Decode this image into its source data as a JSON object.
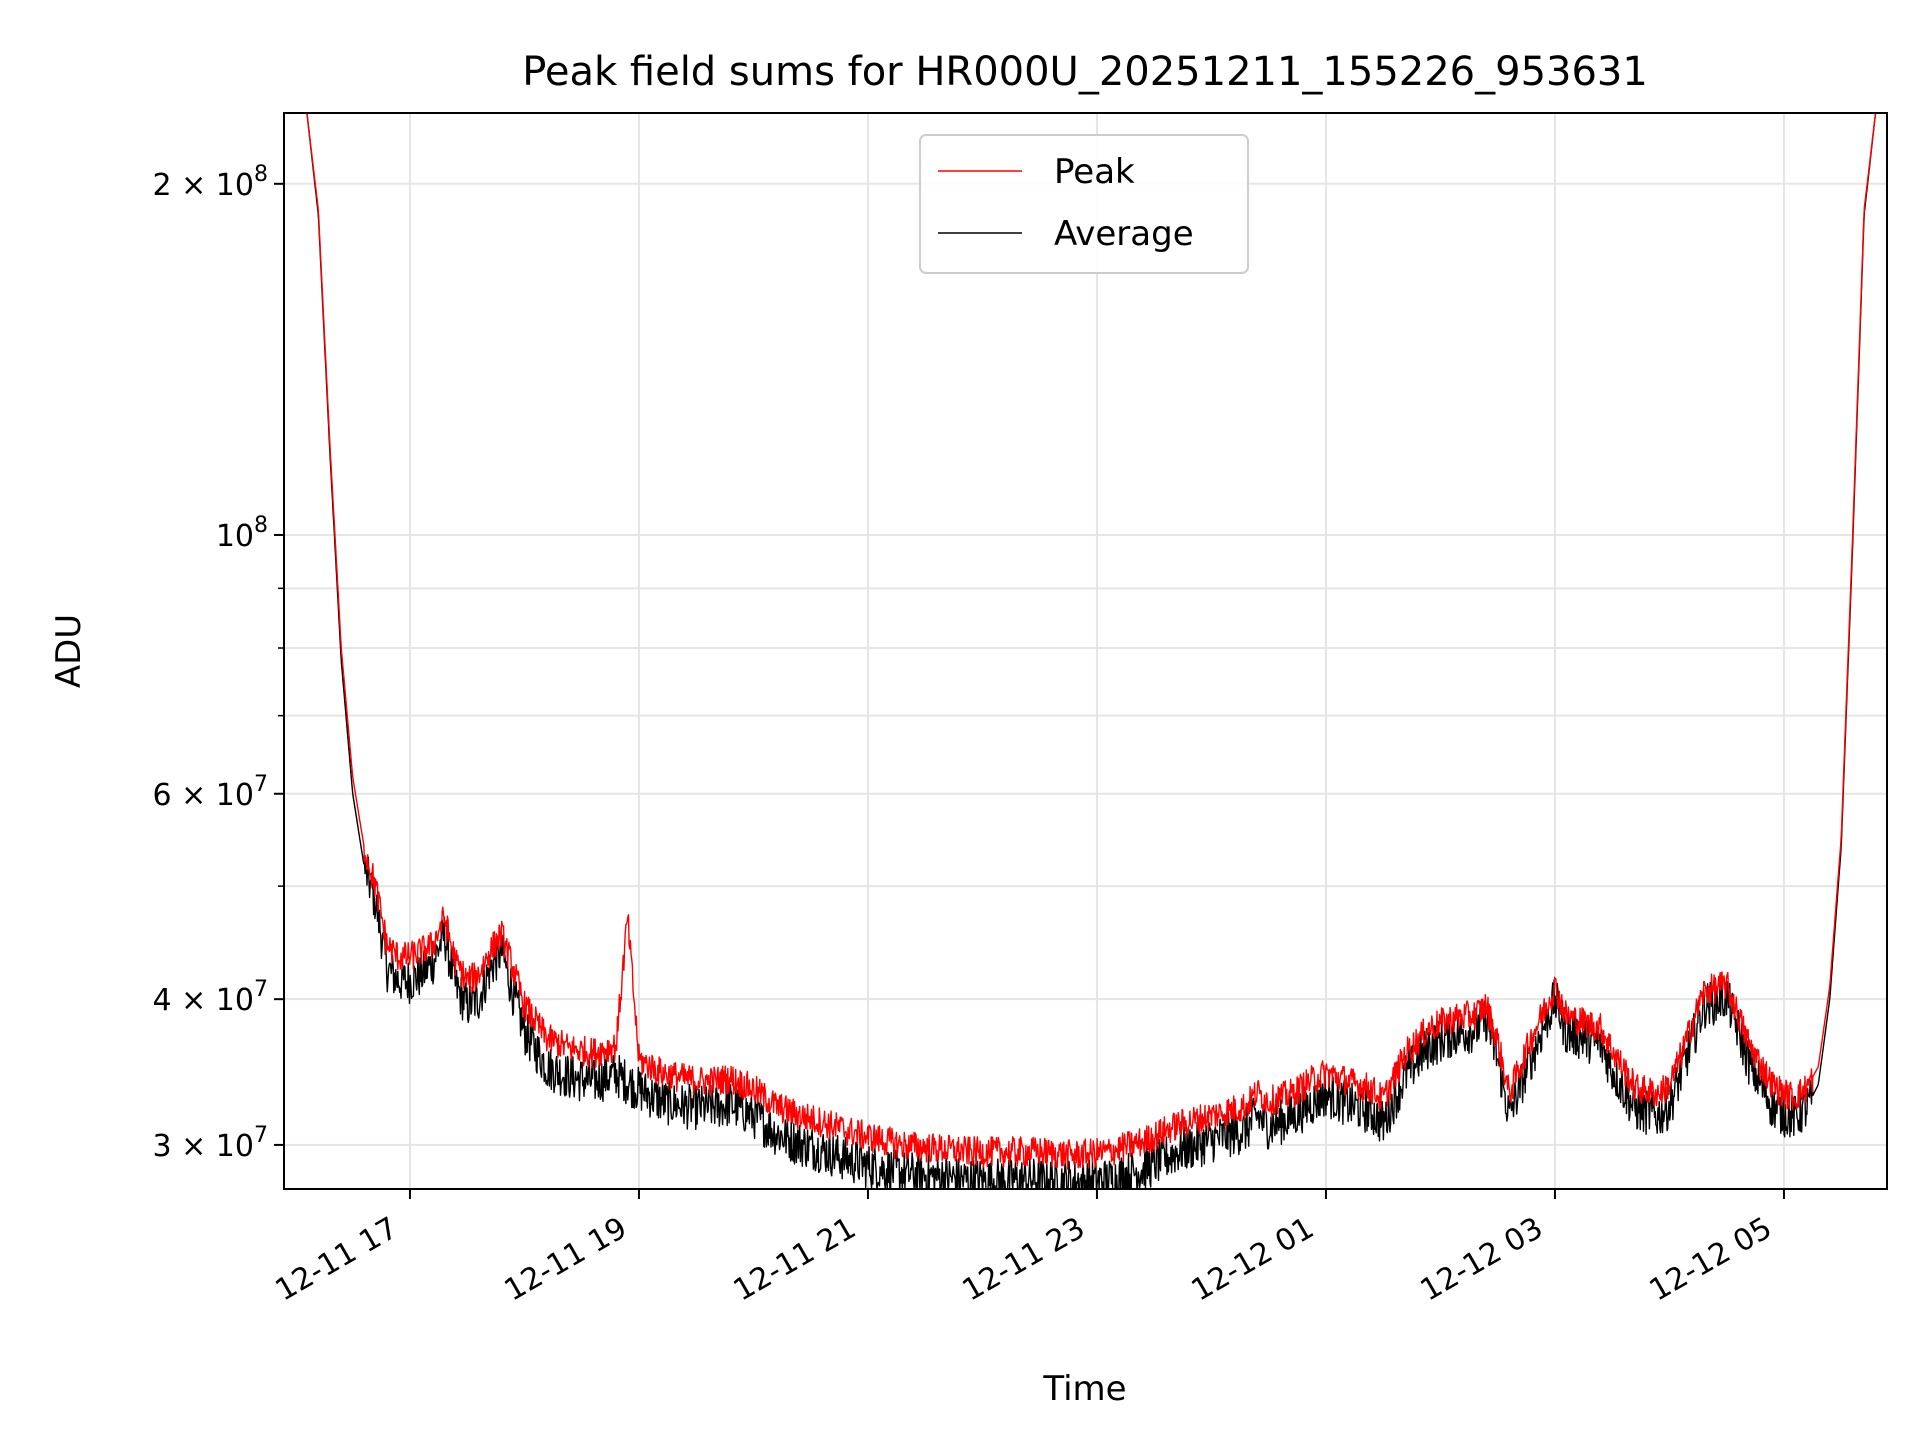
{
  "chart_data": {
    "type": "line",
    "title": "Peak field sums for HR000U_20251211_155226_953631",
    "xlabel": "Time",
    "ylabel": "ADU",
    "yscale": "log",
    "ylim": [
      27500000,
      230000000
    ],
    "xlim_hours": [
      15.9,
      29.9
    ],
    "grid": true,
    "legend_location": "upper center",
    "x_unit": "hours since 2025-12-11 00:00",
    "x_ticks": [
      {
        "value": 17,
        "label": "12-11 17"
      },
      {
        "value": 19,
        "label": "12-11 19"
      },
      {
        "value": 21,
        "label": "12-11 21"
      },
      {
        "value": 23,
        "label": "12-11 23"
      },
      {
        "value": 25,
        "label": "12-12 01"
      },
      {
        "value": 27,
        "label": "12-12 03"
      },
      {
        "value": 29,
        "label": "12-12 05"
      }
    ],
    "y_ticks": [
      {
        "value": 30000000,
        "mantissa": "3",
        "exponent": "7"
      },
      {
        "value": 40000000,
        "mantissa": "4",
        "exponent": "7"
      },
      {
        "value": 60000000,
        "mantissa": "6",
        "exponent": "7"
      },
      {
        "value": 100000000,
        "mantissa": "",
        "exponent": "8"
      },
      {
        "value": 200000000,
        "mantissa": "2",
        "exponent": "8"
      }
    ],
    "y_minor_ticks": [
      50000000,
      70000000,
      80000000,
      90000000
    ],
    "series": [
      {
        "name": "Peak",
        "color": "#ff0000",
        "x": [
          16.1,
          16.2,
          16.3,
          16.4,
          16.5,
          16.6,
          16.7,
          16.8,
          16.9,
          17.0,
          17.1,
          17.2,
          17.3,
          17.4,
          17.5,
          17.6,
          17.7,
          17.8,
          17.9,
          18.0,
          18.2,
          18.4,
          18.6,
          18.8,
          18.9,
          19.0,
          19.2,
          19.4,
          19.6,
          19.8,
          20.0,
          20.2,
          20.4,
          20.6,
          20.8,
          21.0,
          21.3,
          21.6,
          21.9,
          22.2,
          22.5,
          22.8,
          23.1,
          23.4,
          23.7,
          24.0,
          24.3,
          24.4,
          24.5,
          24.7,
          24.9,
          25.0,
          25.2,
          25.4,
          25.5,
          25.7,
          25.9,
          26.1,
          26.3,
          26.4,
          26.5,
          26.6,
          26.8,
          27.0,
          27.1,
          27.3,
          27.4,
          27.5,
          27.7,
          27.9,
          28.0,
          28.1,
          28.3,
          28.5,
          28.7,
          28.9,
          29.0,
          29.1,
          29.2,
          29.3,
          29.4,
          29.5,
          29.6,
          29.7,
          29.8
        ],
        "y": [
          230000000,
          190000000,
          120000000,
          80000000,
          62000000,
          54000000,
          50000000,
          44500000,
          43500000,
          43500000,
          44000000,
          44500000,
          47000000,
          43000000,
          41500000,
          42000000,
          44000000,
          45500000,
          42500000,
          39500000,
          37000000,
          36300000,
          36000000,
          36500000,
          47000000,
          35500000,
          34600000,
          34200000,
          34000000,
          34200000,
          33500000,
          32400000,
          31800000,
          31400000,
          30900000,
          30500000,
          30000000,
          29800000,
          29600000,
          29600000,
          29600000,
          29400000,
          29600000,
          30200000,
          31200000,
          31800000,
          32400000,
          33300000,
          32700000,
          33200000,
          34200000,
          34600000,
          34000000,
          33500000,
          32800000,
          36000000,
          37800000,
          38500000,
          38800000,
          39500000,
          36800000,
          33200000,
          37200000,
          41000000,
          38700000,
          38100000,
          37800000,
          36200000,
          33600000,
          33200000,
          33800000,
          35800000,
          40600000,
          41200000,
          36500000,
          33800000,
          33200000,
          33000000,
          33600000,
          35000000,
          41000000,
          55000000,
          100000000,
          190000000,
          230000000
        ]
      },
      {
        "name": "Average",
        "color": "#000000",
        "x": [
          16.1,
          16.2,
          16.3,
          16.4,
          16.5,
          16.6,
          16.7,
          16.8,
          16.9,
          17.0,
          17.1,
          17.2,
          17.3,
          17.4,
          17.5,
          17.6,
          17.7,
          17.8,
          17.9,
          18.0,
          18.2,
          18.4,
          18.6,
          18.8,
          18.9,
          19.0,
          19.2,
          19.4,
          19.6,
          19.8,
          20.0,
          20.2,
          20.4,
          20.6,
          20.8,
          21.0,
          21.3,
          21.6,
          21.9,
          22.2,
          22.5,
          22.8,
          23.1,
          23.4,
          23.7,
          24.0,
          24.3,
          24.4,
          24.5,
          24.7,
          24.9,
          25.0,
          25.2,
          25.4,
          25.5,
          25.7,
          25.9,
          26.1,
          26.3,
          26.4,
          26.5,
          26.6,
          26.8,
          27.0,
          27.1,
          27.3,
          27.4,
          27.5,
          27.7,
          27.9,
          28.0,
          28.1,
          28.3,
          28.5,
          28.7,
          28.9,
          29.0,
          29.1,
          29.2,
          29.3,
          29.4,
          29.5,
          29.6,
          29.7,
          29.8
        ],
        "y": [
          230000000,
          188000000,
          118000000,
          78000000,
          60000000,
          52000000,
          48500000,
          42500000,
          41500000,
          41500000,
          42000000,
          43000000,
          45500000,
          41000000,
          39500000,
          40000000,
          42500000,
          44000000,
          40500000,
          37500000,
          35000000,
          34300000,
          34000000,
          34500000,
          34000000,
          33500000,
          32700000,
          32400000,
          32300000,
          32500000,
          31800000,
          30700000,
          30100000,
          29700000,
          29200000,
          28800000,
          28400000,
          28200000,
          28000000,
          28000000,
          28000000,
          27900000,
          28000000,
          28600000,
          29600000,
          30300000,
          30900000,
          31800000,
          31100000,
          31700000,
          32700000,
          33200000,
          32500000,
          32000000,
          31300000,
          34500000,
          36500000,
          37300000,
          37700000,
          38500000,
          35500000,
          31800000,
          35800000,
          40000000,
          37500000,
          36900000,
          36600000,
          34800000,
          32200000,
          31800000,
          32400000,
          34500000,
          39500000,
          40200000,
          35200000,
          32400000,
          31900000,
          31700000,
          32300000,
          33800000,
          40000000,
          54000000,
          98000000,
          188000000,
          230000000
        ]
      }
    ],
    "annotations": []
  }
}
